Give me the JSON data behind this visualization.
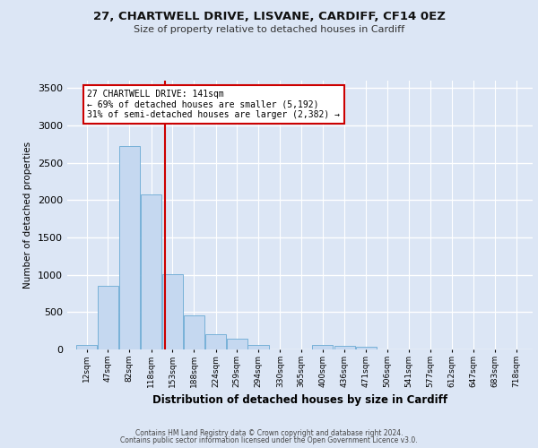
{
  "title1": "27, CHARTWELL DRIVE, LISVANE, CARDIFF, CF14 0EZ",
  "title2": "Size of property relative to detached houses in Cardiff",
  "xlabel": "Distribution of detached houses by size in Cardiff",
  "ylabel": "Number of detached properties",
  "footer1": "Contains HM Land Registry data © Crown copyright and database right 2024.",
  "footer2": "Contains public sector information licensed under the Open Government Licence v3.0.",
  "annotation_line1": "27 CHARTWELL DRIVE: 141sqm",
  "annotation_line2": "← 69% of detached houses are smaller (5,192)",
  "annotation_line3": "31% of semi-detached houses are larger (2,382) →",
  "bar_labels": [
    "12sqm",
    "47sqm",
    "82sqm",
    "118sqm",
    "153sqm",
    "188sqm",
    "224sqm",
    "259sqm",
    "294sqm",
    "330sqm",
    "365sqm",
    "400sqm",
    "436sqm",
    "471sqm",
    "506sqm",
    "541sqm",
    "577sqm",
    "612sqm",
    "647sqm",
    "683sqm",
    "718sqm"
  ],
  "bar_values": [
    60,
    850,
    2730,
    2080,
    1005,
    455,
    200,
    145,
    65,
    5,
    5,
    65,
    50,
    35,
    5,
    0,
    0,
    0,
    0,
    0,
    0
  ],
  "bar_color": "#c5d8f0",
  "bar_edge_color": "#6aaad4",
  "marker_x_value": 141,
  "marker_color": "#cc0000",
  "ylim": [
    0,
    3600
  ],
  "yticks": [
    0,
    500,
    1000,
    1500,
    2000,
    2500,
    3000,
    3500
  ],
  "bg_color": "#dce6f5",
  "plot_bg_color": "#dce6f5",
  "grid_color": "#ffffff",
  "annotation_box_color": "#cc0000",
  "bin_width": 35,
  "xlim_left": -20,
  "xlim_right": 745
}
